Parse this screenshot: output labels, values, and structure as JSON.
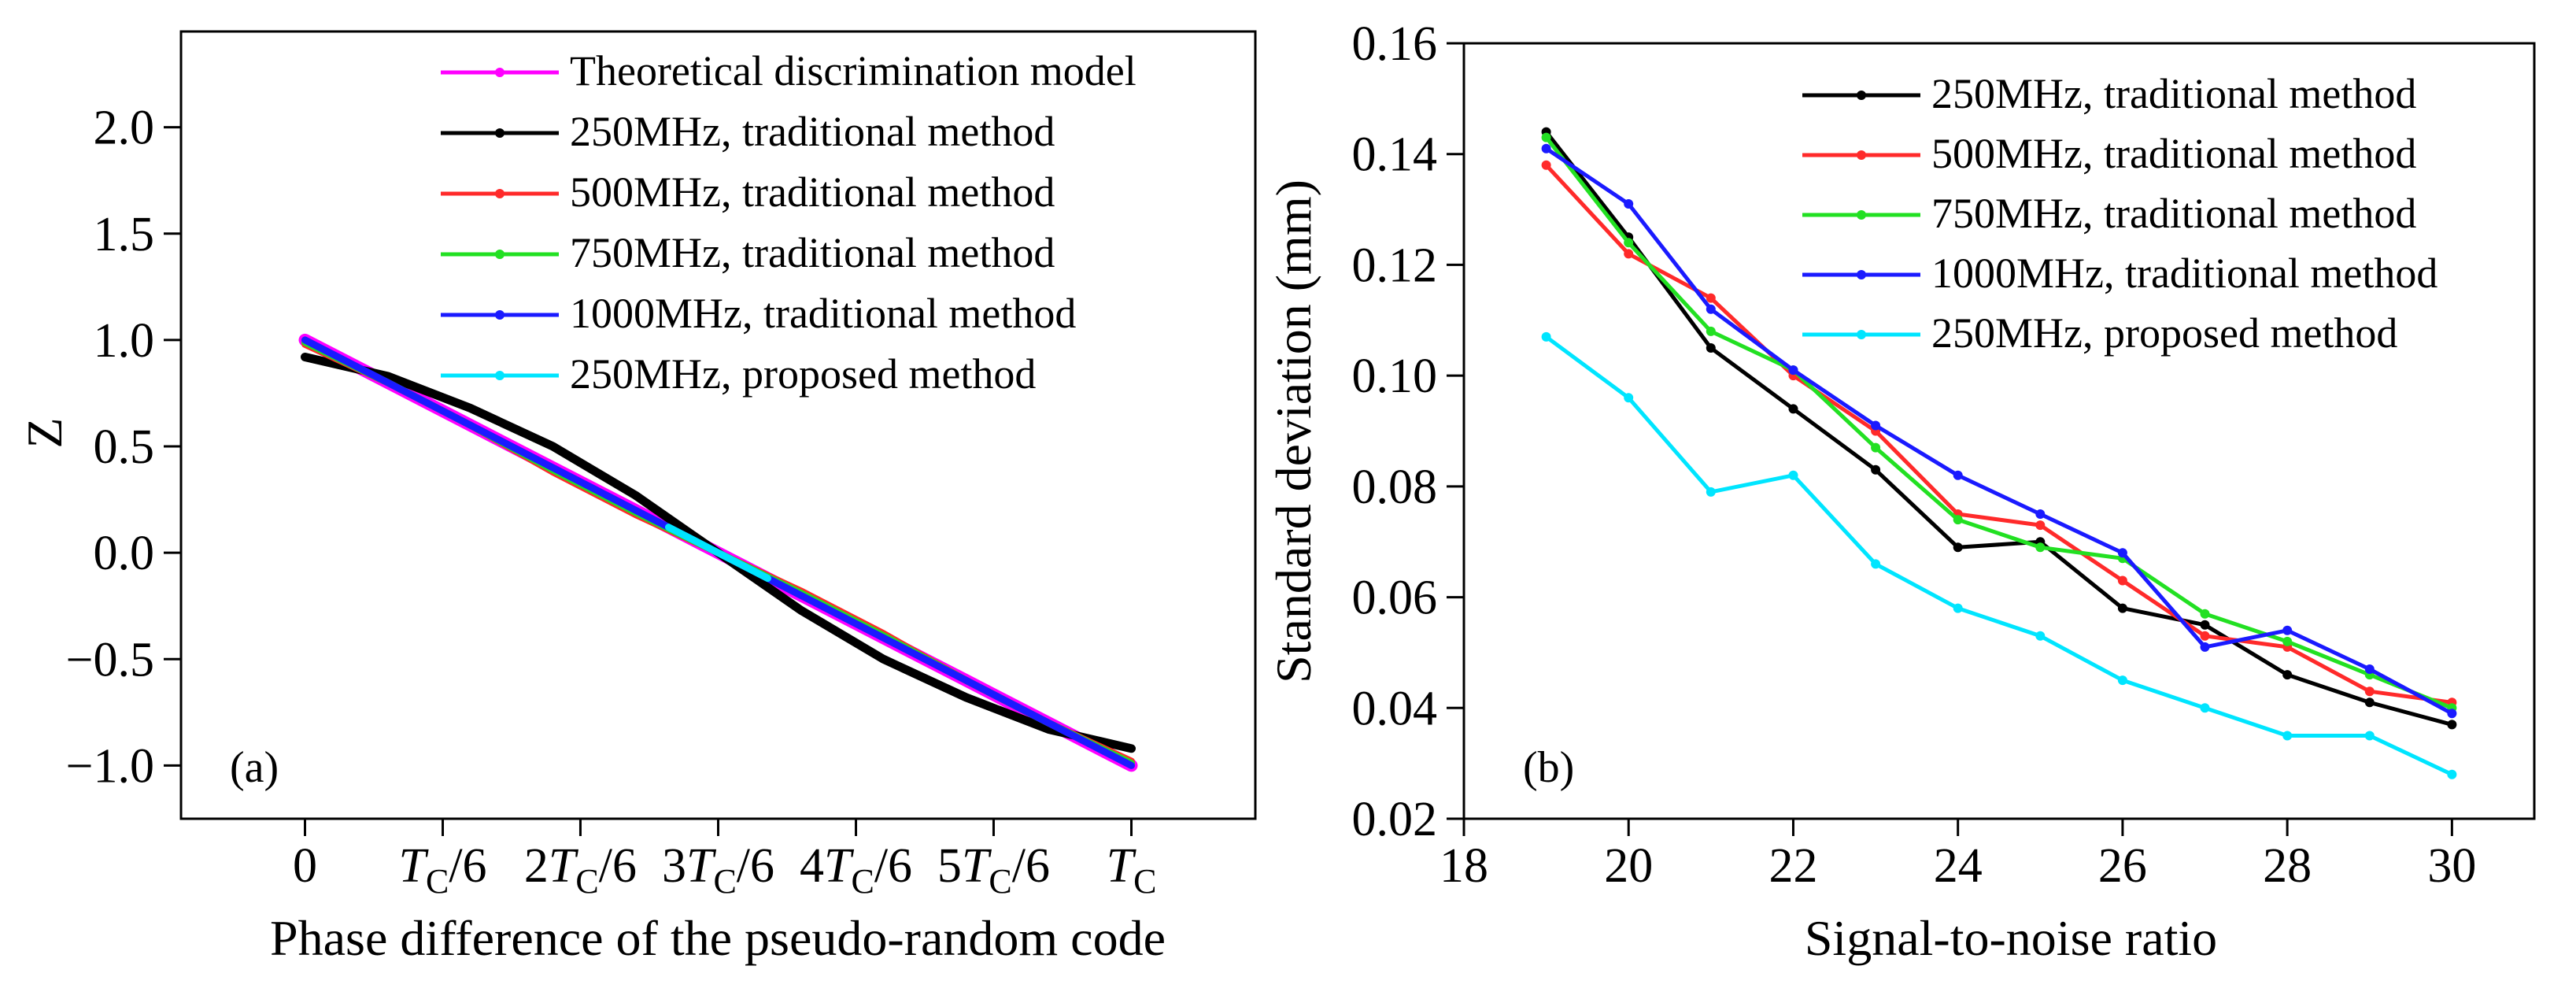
{
  "chart_data": [
    {
      "type": "line",
      "panel_label": "(a)",
      "xlabel": "Phase difference of the pseudo-random code",
      "ylabel": "Z",
      "xlim": [
        -0.15,
        1.15
      ],
      "ylim": [
        -1.25,
        2.45
      ],
      "x_ticks": [
        {
          "value": 0,
          "main": "0",
          "sub": ""
        },
        {
          "value": 0.1667,
          "main": "T",
          "sub": "C",
          "tail": "/6"
        },
        {
          "value": 0.3333,
          "main": "2T",
          "sub": "C",
          "tail": "/6"
        },
        {
          "value": 0.5,
          "main": "3T",
          "sub": "C",
          "tail": "/6"
        },
        {
          "value": 0.6667,
          "main": "4T",
          "sub": "C",
          "tail": "/6"
        },
        {
          "value": 0.8333,
          "main": "5T",
          "sub": "C",
          "tail": "/6"
        },
        {
          "value": 1.0,
          "main": "T",
          "sub": "C",
          "tail": ""
        }
      ],
      "y_ticks": [
        {
          "value": -1.0,
          "label": "−1.0"
        },
        {
          "value": -0.5,
          "label": "−0.5"
        },
        {
          "value": 0.0,
          "label": "0.0"
        },
        {
          "value": 0.5,
          "label": "0.5"
        },
        {
          "value": 1.0,
          "label": "1.0"
        },
        {
          "value": 1.5,
          "label": "1.5"
        },
        {
          "value": 2.0,
          "label": "2.0"
        }
      ],
      "legend_position": "top-right",
      "series": [
        {
          "name": "Theoretical discrimination model",
          "color": "#ff00ff",
          "x": [
            0,
            0.1,
            0.2,
            0.3,
            0.4,
            0.5,
            0.6,
            0.7,
            0.8,
            0.9,
            1.0
          ],
          "y": [
            1.0,
            0.8,
            0.6,
            0.4,
            0.2,
            0.0,
            -0.2,
            -0.4,
            -0.6,
            -0.8,
            -1.0
          ]
        },
        {
          "name": "250MHz, traditional method",
          "color": "#000000",
          "x": [
            0,
            0.1,
            0.2,
            0.3,
            0.4,
            0.5,
            0.6,
            0.7,
            0.8,
            0.9,
            1.0
          ],
          "y": [
            0.92,
            0.83,
            0.68,
            0.5,
            0.27,
            0.0,
            -0.27,
            -0.5,
            -0.68,
            -0.83,
            -0.92
          ]
        },
        {
          "name": "500MHz, traditional method",
          "color": "#ff2a2a",
          "x": [
            0,
            0.1,
            0.2,
            0.3,
            0.4,
            0.5,
            0.6,
            0.7,
            0.8,
            0.9,
            1.0
          ],
          "y": [
            0.98,
            0.8,
            0.6,
            0.38,
            0.18,
            0.0,
            -0.18,
            -0.38,
            -0.6,
            -0.8,
            -0.98
          ]
        },
        {
          "name": "750MHz, traditional method",
          "color": "#22e022",
          "x": [
            0,
            0.1,
            0.2,
            0.3,
            0.4,
            0.5,
            0.6,
            0.7,
            0.8,
            0.9,
            1.0
          ],
          "y": [
            0.99,
            0.8,
            0.6,
            0.39,
            0.19,
            0.0,
            -0.19,
            -0.39,
            -0.6,
            -0.8,
            -0.99
          ]
        },
        {
          "name": "1000MHz, traditional method",
          "color": "#1a1aff",
          "x": [
            0,
            0.1,
            0.2,
            0.3,
            0.4,
            0.5,
            0.6,
            0.7,
            0.8,
            0.9,
            1.0
          ],
          "y": [
            1.0,
            0.8,
            0.6,
            0.4,
            0.2,
            0.0,
            -0.2,
            -0.4,
            -0.6,
            -0.8,
            -1.0
          ]
        },
        {
          "name": "250MHz, proposed method",
          "color": "#00e5ff",
          "x": [
            0.44,
            0.47,
            0.5,
            0.53,
            0.56
          ],
          "y": [
            0.12,
            0.06,
            0.0,
            -0.06,
            -0.12
          ]
        }
      ]
    },
    {
      "type": "line",
      "panel_label": "(b)",
      "xlabel": "Signal-to-noise ratio",
      "ylabel": "Standard deviation (mm)",
      "xlim": [
        18,
        31
      ],
      "ylim": [
        0.02,
        0.16
      ],
      "x_ticks": [
        {
          "value": 18,
          "label": "18"
        },
        {
          "value": 20,
          "label": "20"
        },
        {
          "value": 22,
          "label": "22"
        },
        {
          "value": 24,
          "label": "24"
        },
        {
          "value": 26,
          "label": "26"
        },
        {
          "value": 28,
          "label": "28"
        },
        {
          "value": 30,
          "label": "30"
        }
      ],
      "y_ticks": [
        {
          "value": 0.02,
          "label": "0.02"
        },
        {
          "value": 0.04,
          "label": "0.04"
        },
        {
          "value": 0.06,
          "label": "0.06"
        },
        {
          "value": 0.08,
          "label": "0.08"
        },
        {
          "value": 0.1,
          "label": "0.10"
        },
        {
          "value": 0.12,
          "label": "0.12"
        },
        {
          "value": 0.14,
          "label": "0.14"
        },
        {
          "value": 0.16,
          "label": "0.16"
        }
      ],
      "legend_position": "top-right",
      "x": [
        19,
        20,
        21,
        22,
        23,
        24,
        25,
        26,
        27,
        28,
        29,
        30
      ],
      "series": [
        {
          "name": "250MHz, traditional method",
          "color": "#000000",
          "values": [
            0.144,
            0.125,
            0.105,
            0.094,
            0.083,
            0.069,
            0.07,
            0.058,
            0.055,
            0.046,
            0.041,
            0.037
          ]
        },
        {
          "name": "500MHz, traditional method",
          "color": "#ff2a2a",
          "values": [
            0.138,
            0.122,
            0.114,
            0.1,
            0.09,
            0.075,
            0.073,
            0.063,
            0.053,
            0.051,
            0.043,
            0.041
          ]
        },
        {
          "name": "750MHz, traditional method",
          "color": "#22e022",
          "values": [
            0.143,
            0.124,
            0.108,
            0.101,
            0.087,
            0.074,
            0.069,
            0.067,
            0.057,
            0.052,
            0.046,
            0.04
          ]
        },
        {
          "name": "1000MHz, traditional method",
          "color": "#1a1aff",
          "values": [
            0.141,
            0.131,
            0.112,
            0.101,
            0.091,
            0.082,
            0.075,
            0.068,
            0.051,
            0.054,
            0.047,
            0.039
          ]
        },
        {
          "name": "250MHz, proposed method",
          "color": "#00e5ff",
          "values": [
            0.107,
            0.096,
            0.079,
            0.082,
            0.066,
            0.058,
            0.053,
            0.045,
            0.04,
            0.035,
            0.035,
            0.028
          ]
        }
      ]
    }
  ]
}
